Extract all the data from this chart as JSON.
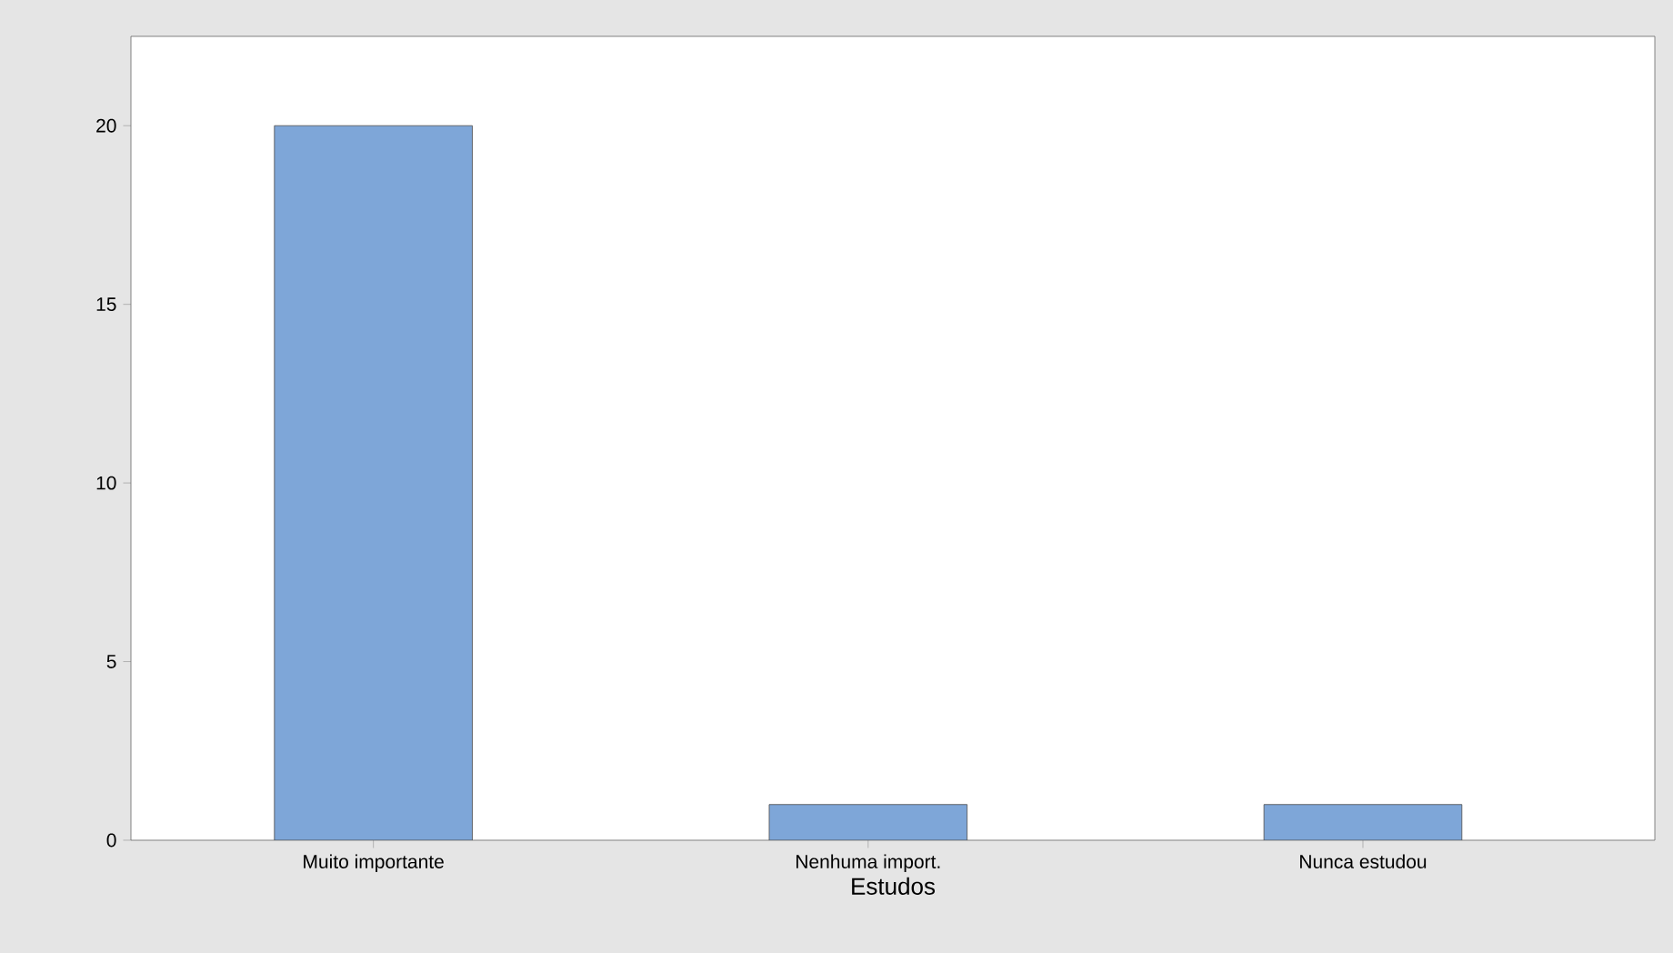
{
  "chart_data": {
    "type": "bar",
    "xlabel": "Estudos",
    "categories": [
      "Muito importante",
      "Nenhuma import.",
      "Nunca estudou"
    ],
    "values": [
      20,
      1,
      1
    ],
    "color": "#7ea6d8",
    "ylim": [
      0,
      22.5
    ],
    "yticks": [
      0,
      5,
      10,
      15,
      20
    ],
    "grid": false
  }
}
